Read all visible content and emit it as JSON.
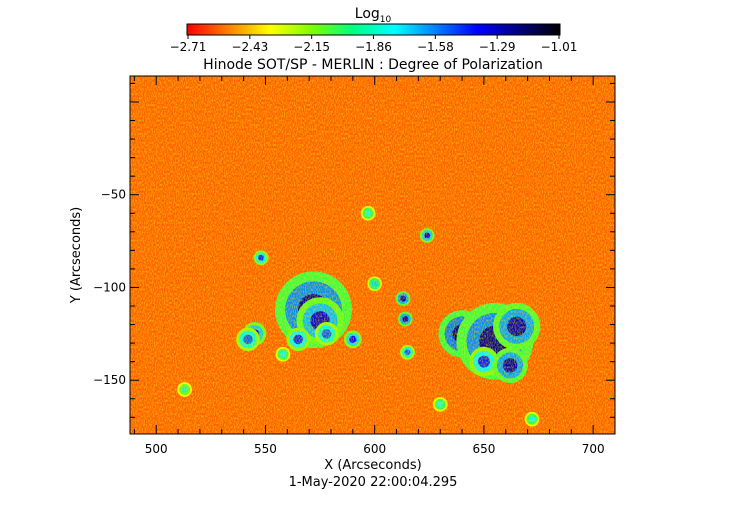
{
  "chart_data": {
    "type": "heatmap",
    "title": "Hinode SOT/SP - MERLIN : Degree of Polarization",
    "colorbar": {
      "label": "Log",
      "label_sub": "10",
      "ticks": [
        "-2.71",
        "-2.43",
        "-2.15",
        "-1.86",
        "-1.58",
        "-1.29",
        "-1.01"
      ],
      "range": [
        -2.71,
        -1.01
      ],
      "colors": [
        "#ff0000",
        "#ff8000",
        "#ffff00",
        "#80ff00",
        "#00ff80",
        "#00ffff",
        "#0080ff",
        "#0000ff",
        "#000080",
        "#000000"
      ]
    },
    "xlabel": "X (Arcseconds)",
    "ylabel": "Y (Arcseconds)",
    "xlim": [
      488,
      710
    ],
    "ylim": [
      -179,
      14
    ],
    "xticks": [
      500,
      550,
      600,
      650,
      700
    ],
    "yticks": [
      -50,
      -100,
      -150
    ],
    "date": "1-May-2020 22:00:04.295",
    "background_color": "#ff5e00",
    "patches": [
      {
        "x": 572,
        "y": -112,
        "r": 13,
        "level": 0.88
      },
      {
        "x": 575,
        "y": -118,
        "r": 8,
        "level": 0.82
      },
      {
        "x": 565,
        "y": -128,
        "r": 4,
        "level": 0.75
      },
      {
        "x": 578,
        "y": -125,
        "r": 4,
        "level": 0.7
      },
      {
        "x": 640,
        "y": -125,
        "r": 8,
        "level": 0.9
      },
      {
        "x": 655,
        "y": -129,
        "r": 13,
        "level": 0.88
      },
      {
        "x": 665,
        "y": -121,
        "r": 8,
        "level": 0.85
      },
      {
        "x": 650,
        "y": -140,
        "r": 5,
        "level": 0.75
      },
      {
        "x": 662,
        "y": -142,
        "r": 6,
        "level": 0.85
      },
      {
        "x": 545,
        "y": -125,
        "r": 4,
        "level": 0.8
      },
      {
        "x": 542,
        "y": -128,
        "r": 4,
        "level": 0.7
      },
      {
        "x": 590,
        "y": -128,
        "r": 3,
        "level": 0.78
      },
      {
        "x": 613,
        "y": -106,
        "r": 2.5,
        "level": 0.85
      },
      {
        "x": 614,
        "y": -117,
        "r": 2.5,
        "level": 0.85
      },
      {
        "x": 624,
        "y": -72,
        "r": 2.5,
        "level": 0.8
      },
      {
        "x": 600,
        "y": -98,
        "r": 2.5,
        "level": 0.6
      },
      {
        "x": 548,
        "y": -84,
        "r": 2.5,
        "level": 0.75
      },
      {
        "x": 558,
        "y": -136,
        "r": 2.5,
        "level": 0.55
      },
      {
        "x": 597,
        "y": -60,
        "r": 2.5,
        "level": 0.55
      },
      {
        "x": 630,
        "y": -163,
        "r": 2.5,
        "level": 0.55
      },
      {
        "x": 672,
        "y": -171,
        "r": 2.5,
        "level": 0.55
      },
      {
        "x": 513,
        "y": -155,
        "r": 2.5,
        "level": 0.5
      },
      {
        "x": 615,
        "y": -135,
        "r": 2.5,
        "level": 0.7
      }
    ]
  }
}
